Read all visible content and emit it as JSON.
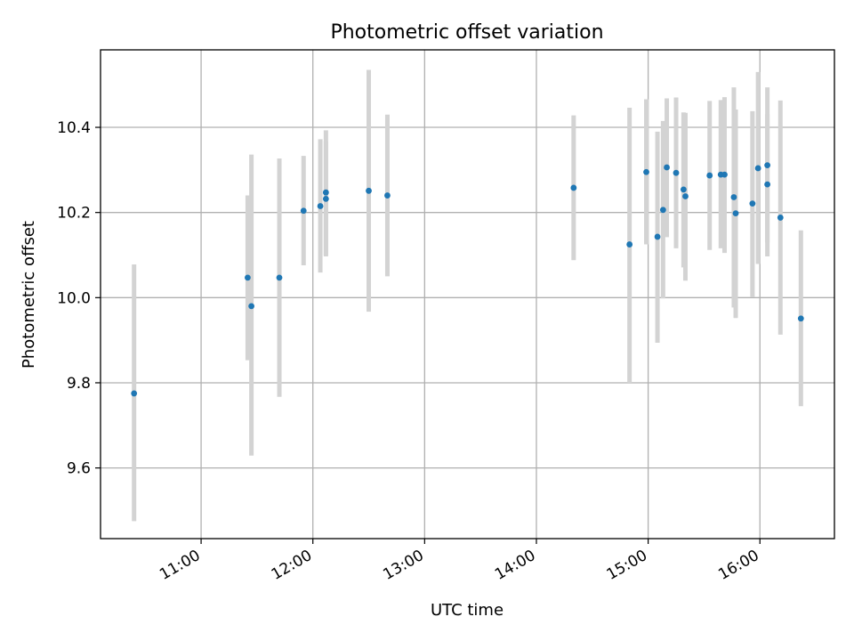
{
  "chart_data": {
    "type": "scatter",
    "title": "Photometric offset variation",
    "xlabel": "UTC time",
    "ylabel": "Photometric offset",
    "x_axis_kind": "time",
    "xlim": [
      "10:06",
      "16:40"
    ],
    "ylim": [
      9.434,
      10.582
    ],
    "grid": true,
    "x_ticks": [
      "11:00",
      "12:00",
      "13:00",
      "14:00",
      "15:00",
      "16:00"
    ],
    "y_ticks": [
      "9.6",
      "9.8",
      "10.0",
      "10.2",
      "10.4"
    ],
    "colors": {
      "points": "#1f77b4",
      "error_bars": "#d3d3d3",
      "grid": "#b0b0b0"
    },
    "points": [
      {
        "x": "10:24",
        "y": 9.775,
        "err_low": 9.475,
        "err_high": 10.078
      },
      {
        "x": "11:25",
        "y": 10.047,
        "err_low": 9.853,
        "err_high": 10.24
      },
      {
        "x": "11:27",
        "y": 9.98,
        "err_low": 9.629,
        "err_high": 10.336
      },
      {
        "x": "11:42",
        "y": 10.047,
        "err_low": 9.767,
        "err_high": 10.327
      },
      {
        "x": "11:55",
        "y": 10.204,
        "err_low": 10.076,
        "err_high": 10.333
      },
      {
        "x": "12:04",
        "y": 10.215,
        "err_low": 10.059,
        "err_high": 10.372
      },
      {
        "x": "12:07",
        "y": 10.232,
        "err_low": 10.097,
        "err_high": 10.367
      },
      {
        "x": "12:07",
        "y": 10.247,
        "err_low": 10.1,
        "err_high": 10.393
      },
      {
        "x": "12:30",
        "y": 10.251,
        "err_low": 9.967,
        "err_high": 10.535
      },
      {
        "x": "12:40",
        "y": 10.24,
        "err_low": 10.05,
        "err_high": 10.43
      },
      {
        "x": "14:20",
        "y": 10.258,
        "err_low": 10.088,
        "err_high": 10.428
      },
      {
        "x": "14:50",
        "y": 10.125,
        "err_low": 9.8,
        "err_high": 10.446
      },
      {
        "x": "14:59",
        "y": 10.295,
        "err_low": 10.125,
        "err_high": 10.466
      },
      {
        "x": "15:05",
        "y": 10.143,
        "err_low": 9.894,
        "err_high": 10.39
      },
      {
        "x": "15:08",
        "y": 10.206,
        "err_low": 9.998,
        "err_high": 10.415
      },
      {
        "x": "15:10",
        "y": 10.306,
        "err_low": 10.142,
        "err_high": 10.468
      },
      {
        "x": "15:15",
        "y": 10.293,
        "err_low": 10.116,
        "err_high": 10.47
      },
      {
        "x": "15:19",
        "y": 10.254,
        "err_low": 10.071,
        "err_high": 10.435
      },
      {
        "x": "15:20",
        "y": 10.238,
        "err_low": 10.04,
        "err_high": 10.434
      },
      {
        "x": "15:33",
        "y": 10.287,
        "err_low": 10.112,
        "err_high": 10.462
      },
      {
        "x": "15:39",
        "y": 10.289,
        "err_low": 10.116,
        "err_high": 10.464
      },
      {
        "x": "15:41",
        "y": 10.289,
        "err_low": 10.105,
        "err_high": 10.471
      },
      {
        "x": "15:46",
        "y": 10.236,
        "err_low": 9.977,
        "err_high": 10.494
      },
      {
        "x": "15:47",
        "y": 10.198,
        "err_low": 9.952,
        "err_high": 10.442
      },
      {
        "x": "15:56",
        "y": 10.221,
        "err_low": 10.001,
        "err_high": 10.438
      },
      {
        "x": "15:59",
        "y": 10.304,
        "err_low": 10.079,
        "err_high": 10.53
      },
      {
        "x": "16:04",
        "y": 10.311,
        "err_low": 10.129,
        "err_high": 10.494
      },
      {
        "x": "16:04",
        "y": 10.266,
        "err_low": 10.097,
        "err_high": 10.431
      },
      {
        "x": "16:11",
        "y": 10.188,
        "err_low": 9.913,
        "err_high": 10.463
      },
      {
        "x": "16:22",
        "y": 9.951,
        "err_low": 9.745,
        "err_high": 10.158
      }
    ]
  }
}
